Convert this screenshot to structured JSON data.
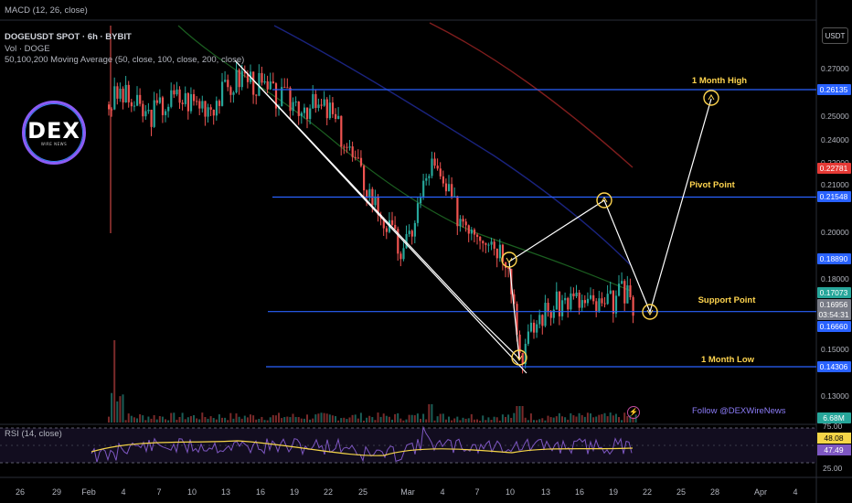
{
  "header": {
    "macd_label": "MACD (12, 26, close)",
    "symbol_line": "DOGEUSDT SPOT · 6h · BYBIT",
    "vol_label": "Vol · DOGE",
    "ma_label": "50,100,200 Moving Average (50, close, 100, close, 200, close)"
  },
  "logo": {
    "main": "DEX",
    "sub": "WIRE NEWS"
  },
  "currency": "USDT",
  "follow_text": "Follow @DEXWireNews",
  "rsi_label": "RSI (14, close)",
  "colors": {
    "up": "#26a69a",
    "down": "#ef5350",
    "level_line": "#2962ff",
    "annotation": "#ffd54f",
    "marker": "#ffd54f"
  },
  "chart_data": {
    "type": "candlestick",
    "y_ticks": [
      "0.27000",
      "0.25000",
      "0.24000",
      "0.22000",
      "0.21000",
      "0.20000",
      "0.18000",
      "0.15000",
      "0.13000"
    ],
    "x_ticks": [
      "26",
      "29",
      "Feb",
      "4",
      "7",
      "10",
      "13",
      "16",
      "19",
      "22",
      "25",
      "Mar",
      "4",
      "7",
      "10",
      "13",
      "16",
      "19",
      "22",
      "25",
      "28",
      "Apr",
      "4"
    ],
    "levels": [
      {
        "label": "1 Month High",
        "price": 0.26135
      },
      {
        "label": "Pivot Point",
        "price": 0.21548
      },
      {
        "label": "Support Point",
        "price": 0.1666
      },
      {
        "label": "1 Month Low",
        "price": 0.14306
      }
    ],
    "price_badges": [
      {
        "value": "0.26135",
        "color": "#2962ff"
      },
      {
        "value": "0.22781",
        "color": "#e53935"
      },
      {
        "value": "0.21548",
        "color": "#2962ff"
      },
      {
        "value": "0.18890",
        "color": "#2962ff"
      },
      {
        "value": "0.17073",
        "color": "#26a69a"
      },
      {
        "value": "0.16956",
        "color": "#787b86"
      },
      {
        "value": "03:54:31",
        "color": "#787b86"
      },
      {
        "value": "0.16660",
        "color": "#2962ff"
      },
      {
        "value": "0.14306",
        "color": "#2962ff"
      },
      {
        "value": "6.68M",
        "color": "#26a69a"
      }
    ],
    "rsi": {
      "ticks": [
        "75.00",
        "25.00"
      ],
      "badges": [
        {
          "value": "48.08",
          "color": "#f5d547"
        },
        {
          "value": "47.49",
          "color": "#7e57c2"
        }
      ]
    }
  }
}
